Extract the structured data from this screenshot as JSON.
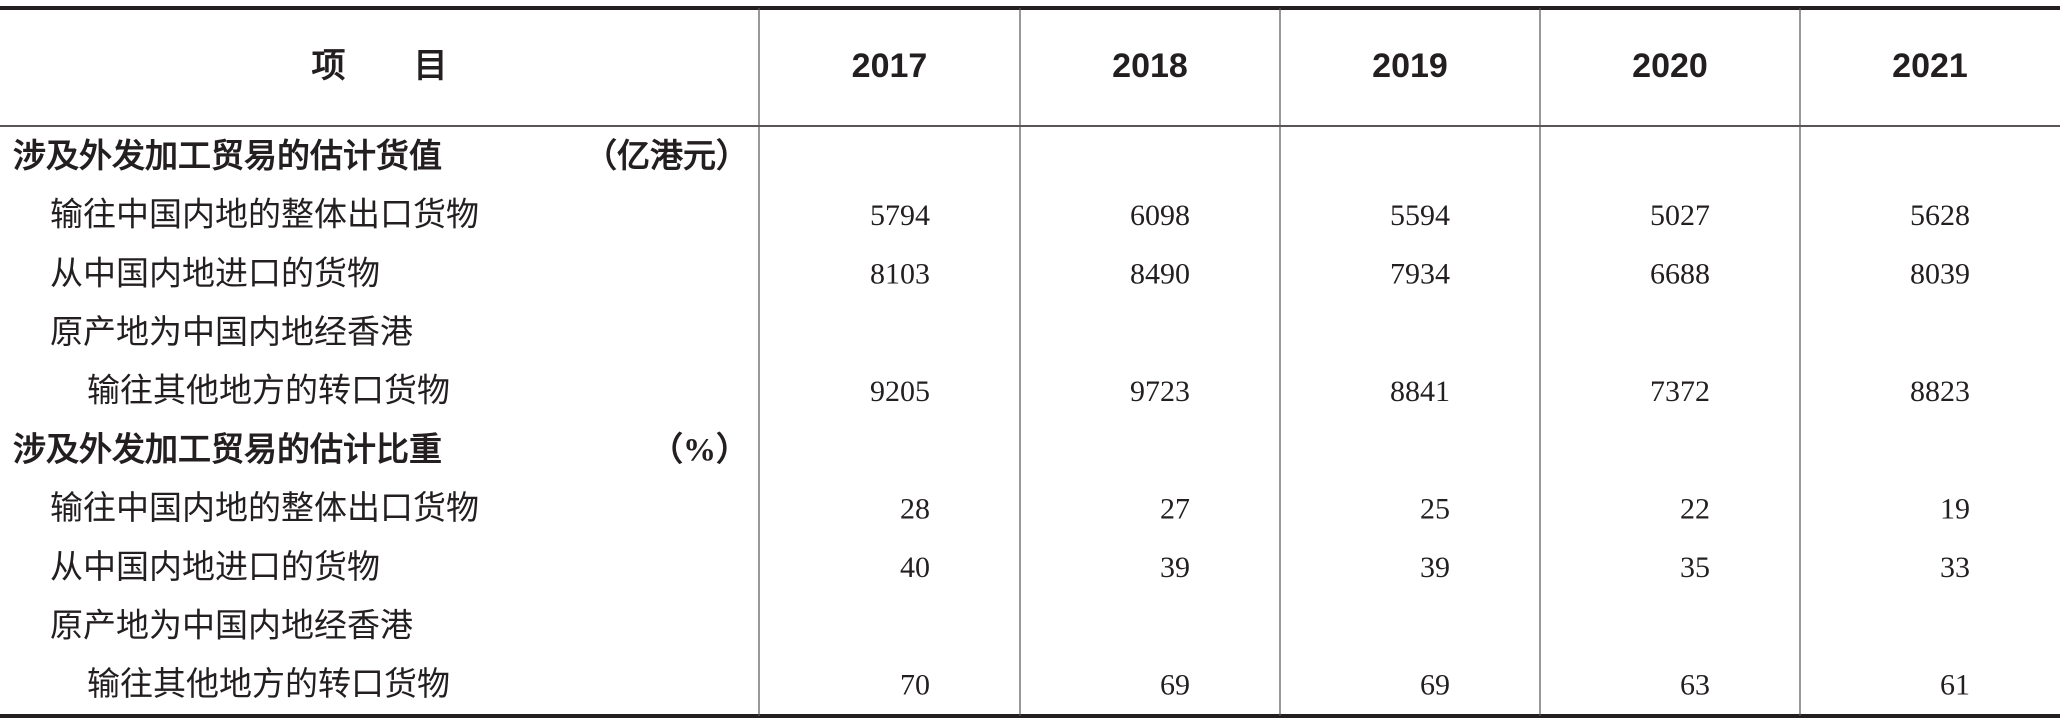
{
  "table": {
    "header": [
      "项　　目",
      "2017",
      "2018",
      "2019",
      "2020",
      "2021"
    ],
    "sections": [
      {
        "title": "涉及外发加工贸易的估计货值",
        "unit": "（亿港元）",
        "rows": [
          {
            "label": [
              "输往中国内地的整体出口货物"
            ],
            "values": [
              5794,
              6098,
              5594,
              5027,
              5628
            ]
          },
          {
            "label": [
              "从中国内地进口的货物"
            ],
            "values": [
              8103,
              8490,
              7934,
              6688,
              8039
            ]
          },
          {
            "label": [
              "原产地为中国内地经香港",
              "输往其他地方的转口货物"
            ],
            "values": [
              9205,
              9723,
              8841,
              7372,
              8823
            ]
          }
        ]
      },
      {
        "title": "涉及外发加工贸易的估计比重",
        "unit": "（%）",
        "rows": [
          {
            "label": [
              "输往中国内地的整体出口货物"
            ],
            "values": [
              28,
              27,
              25,
              22,
              19
            ]
          },
          {
            "label": [
              "从中国内地进口的货物"
            ],
            "values": [
              40,
              39,
              39,
              35,
              33
            ]
          },
          {
            "label": [
              "原产地为中国内地经香港",
              "输往其他地方的转口货物"
            ],
            "values": [
              70,
              69,
              69,
              63,
              61
            ]
          }
        ]
      }
    ]
  }
}
